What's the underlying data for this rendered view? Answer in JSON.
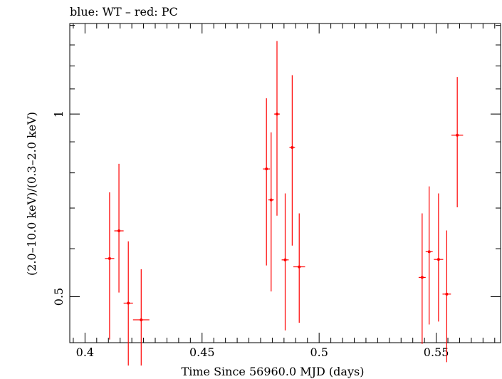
{
  "chart_data": {
    "type": "scatter",
    "title": "blue: WT – red: PC",
    "xlabel": "Time Since 56960.0 MJD (days)",
    "ylabel": "(2.0–10.0 keV)/(0.3–2.0 keV)",
    "xlim": [
      0.3935,
      0.5775
    ],
    "ylim": [
      0.42,
      1.41
    ],
    "yscale": "log",
    "x_ticks": [
      {
        "value": 0.4,
        "label": "0.4"
      },
      {
        "value": 0.45,
        "label": "0.45"
      },
      {
        "value": 0.5,
        "label": "0.5"
      },
      {
        "value": 0.55,
        "label": "0.55"
      }
    ],
    "y_ticks": [
      {
        "value": 0.5,
        "label": "0.5"
      },
      {
        "value": 1.0,
        "label": "1"
      }
    ],
    "grid": false,
    "series": [
      {
        "name": "PC",
        "color": "#ff0000",
        "points": [
          {
            "x": 0.4105,
            "xerr": 0.002,
            "y": 0.578,
            "ylo": 0.425,
            "yhi": 0.743
          },
          {
            "x": 0.4145,
            "xerr": 0.002,
            "y": 0.642,
            "ylo": 0.508,
            "yhi": 0.828
          },
          {
            "x": 0.4185,
            "xerr": 0.002,
            "y": 0.488,
            "ylo": 0.385,
            "yhi": 0.617
          },
          {
            "x": 0.424,
            "xerr": 0.0035,
            "y": 0.458,
            "ylo": 0.385,
            "yhi": 0.555
          },
          {
            "x": 0.4775,
            "xerr": 0.0015,
            "y": 0.812,
            "ylo": 0.563,
            "yhi": 1.062
          },
          {
            "x": 0.4795,
            "xerr": 0.0012,
            "y": 0.722,
            "ylo": 0.51,
            "yhi": 0.933
          },
          {
            "x": 0.482,
            "xerr": 0.0012,
            "y": 1.0,
            "ylo": 0.68,
            "yhi": 1.319
          },
          {
            "x": 0.4855,
            "xerr": 0.0015,
            "y": 0.575,
            "ylo": 0.44,
            "yhi": 0.74
          },
          {
            "x": 0.4885,
            "xerr": 0.0012,
            "y": 0.881,
            "ylo": 0.607,
            "yhi": 1.159
          },
          {
            "x": 0.4915,
            "xerr": 0.0025,
            "y": 0.56,
            "ylo": 0.453,
            "yhi": 0.686
          },
          {
            "x": 0.544,
            "xerr": 0.0015,
            "y": 0.538,
            "ylo": 0.418,
            "yhi": 0.686
          },
          {
            "x": 0.547,
            "xerr": 0.0015,
            "y": 0.593,
            "ylo": 0.45,
            "yhi": 0.76
          },
          {
            "x": 0.551,
            "xerr": 0.002,
            "y": 0.576,
            "ylo": 0.455,
            "yhi": 0.74
          },
          {
            "x": 0.5545,
            "xerr": 0.0018,
            "y": 0.505,
            "ylo": 0.39,
            "yhi": 0.643
          },
          {
            "x": 0.559,
            "xerr": 0.0025,
            "y": 0.923,
            "ylo": 0.702,
            "yhi": 1.151
          }
        ]
      }
    ]
  }
}
